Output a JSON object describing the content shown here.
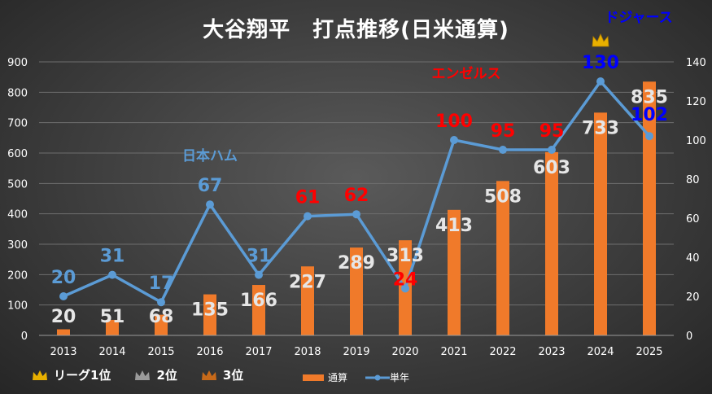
{
  "chart_data": {
    "type": "bar+line",
    "title": "大谷翔平　打点推移(日米通算)",
    "categories": [
      "2013",
      "2014",
      "2015",
      "2016",
      "2017",
      "2018",
      "2019",
      "2020",
      "2021",
      "2022",
      "2023",
      "2024",
      "2025"
    ],
    "series": [
      {
        "name": "通算",
        "type": "bar",
        "axis": "left",
        "values": [
          20,
          51,
          68,
          135,
          166,
          227,
          289,
          313,
          413,
          508,
          603,
          733,
          835
        ]
      },
      {
        "name": "単年",
        "type": "line",
        "axis": "right",
        "values": [
          20,
          31,
          17,
          67,
          31,
          61,
          62,
          24,
          100,
          95,
          95,
          130,
          102
        ],
        "label_colors": [
          "#5b9bd5",
          "#5b9bd5",
          "#5b9bd5",
          "#5b9bd5",
          "#5b9bd5",
          "#ff0000",
          "#ff0000",
          "#ff0000",
          "#ff0000",
          "#ff0000",
          "#ff0000",
          "#0000ff",
          "#0000ff"
        ]
      }
    ],
    "y_left": {
      "min": 0,
      "max": 900,
      "ticks": [
        0,
        100,
        200,
        300,
        400,
        500,
        600,
        700,
        800,
        900
      ]
    },
    "y_right": {
      "min": 0,
      "max": 140,
      "ticks": [
        0,
        20,
        40,
        60,
        80,
        100,
        120,
        140
      ]
    },
    "team_annotations": [
      {
        "text": "日本ハム",
        "color": "#5b9bd5",
        "near": "2016"
      },
      {
        "text": "エンゼルス",
        "color": "#ff0000",
        "near": "2021"
      },
      {
        "text": "ドジャース",
        "color": "#0000ff",
        "near": "2025"
      }
    ],
    "crown_marks": [
      {
        "year": "2024",
        "rank": "リーグ1位"
      }
    ],
    "legend_position": "bottom"
  },
  "colors": {
    "bar": "#f07a2a",
    "line": "#5b9bd5",
    "gold": "#e8b000",
    "silver": "#a0a0a0",
    "bronze": "#c86a1a"
  },
  "legend": {
    "rank1": "リーグ1位",
    "rank2": "2位",
    "rank3": "3位",
    "bar_label": "通算",
    "line_label": "単年"
  }
}
